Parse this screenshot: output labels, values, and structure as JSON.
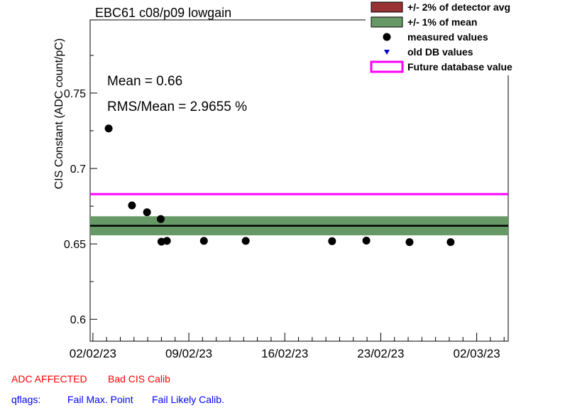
{
  "chart_data": {
    "type": "scatter",
    "title": "EBC61 c08/p09 lowgain",
    "xlabel": "",
    "ylabel": "CIS Constant (ADC count/pC)",
    "x_ticks": [
      "02/02/23",
      "09/02/23",
      "16/02/23",
      "23/02/23",
      "02/03/23"
    ],
    "y_ticks": [
      "0.6",
      "0.65",
      "0.7",
      "0.75"
    ],
    "xlim_days_from_first_tick": [
      -0.2,
      30.3
    ],
    "ylim": [
      0.5855,
      0.7985
    ],
    "mean": 0.662,
    "band_1pct_of_mean": [
      0.65569,
      0.66831
    ],
    "future_database_value": 0.683,
    "series": [
      {
        "name": "measured values",
        "x_dates": [
          "03/02/23",
          "04/02/23",
          "05/02/23",
          "06/02/23",
          "07/02/23",
          "07/02/23",
          "10/02/23",
          "13/02/23",
          "19/02/23",
          "21/02/23",
          "25/02/23",
          "28/02/23"
        ],
        "x_day_fraction": [
          0.15,
          0.85,
          0.95,
          0.95,
          0.0,
          0.4,
          0.1,
          0.15,
          0.45,
          0.95,
          0.1,
          0.1
        ],
        "values": [
          0.7265,
          0.6755,
          0.671,
          0.6665,
          0.6515,
          0.652,
          0.652,
          0.652,
          0.6518,
          0.6522,
          0.6512,
          0.6512
        ]
      }
    ],
    "legend": [
      {
        "label": "+/- 2% of detector avg",
        "color": "#993333",
        "kind": "box"
      },
      {
        "label": "+/- 1% of mean",
        "color": "#669966",
        "kind": "box"
      },
      {
        "label": "measured values",
        "color": "#000000",
        "kind": "marker"
      },
      {
        "label": "old DB values",
        "color": "#0000cc",
        "kind": "triangle"
      },
      {
        "label": "Future database value",
        "color": "#ff00ff",
        "kind": "line"
      }
    ],
    "legend_position": "top-right",
    "annotations": {
      "mean_text": "Mean = 0.66",
      "rms_text": "RMS/Mean = 2.9655 %"
    }
  },
  "flags": {
    "adc_affected": "ADC AFFECTED",
    "bad_cis": "Bad CIS Calib",
    "qflags_label": "qflags:",
    "fail_max": "Fail Max. Point",
    "fail_likely": "Fail Likely Calib."
  },
  "colors": {
    "red_flag": "#ff0000",
    "blue_flag": "#0000ff"
  }
}
